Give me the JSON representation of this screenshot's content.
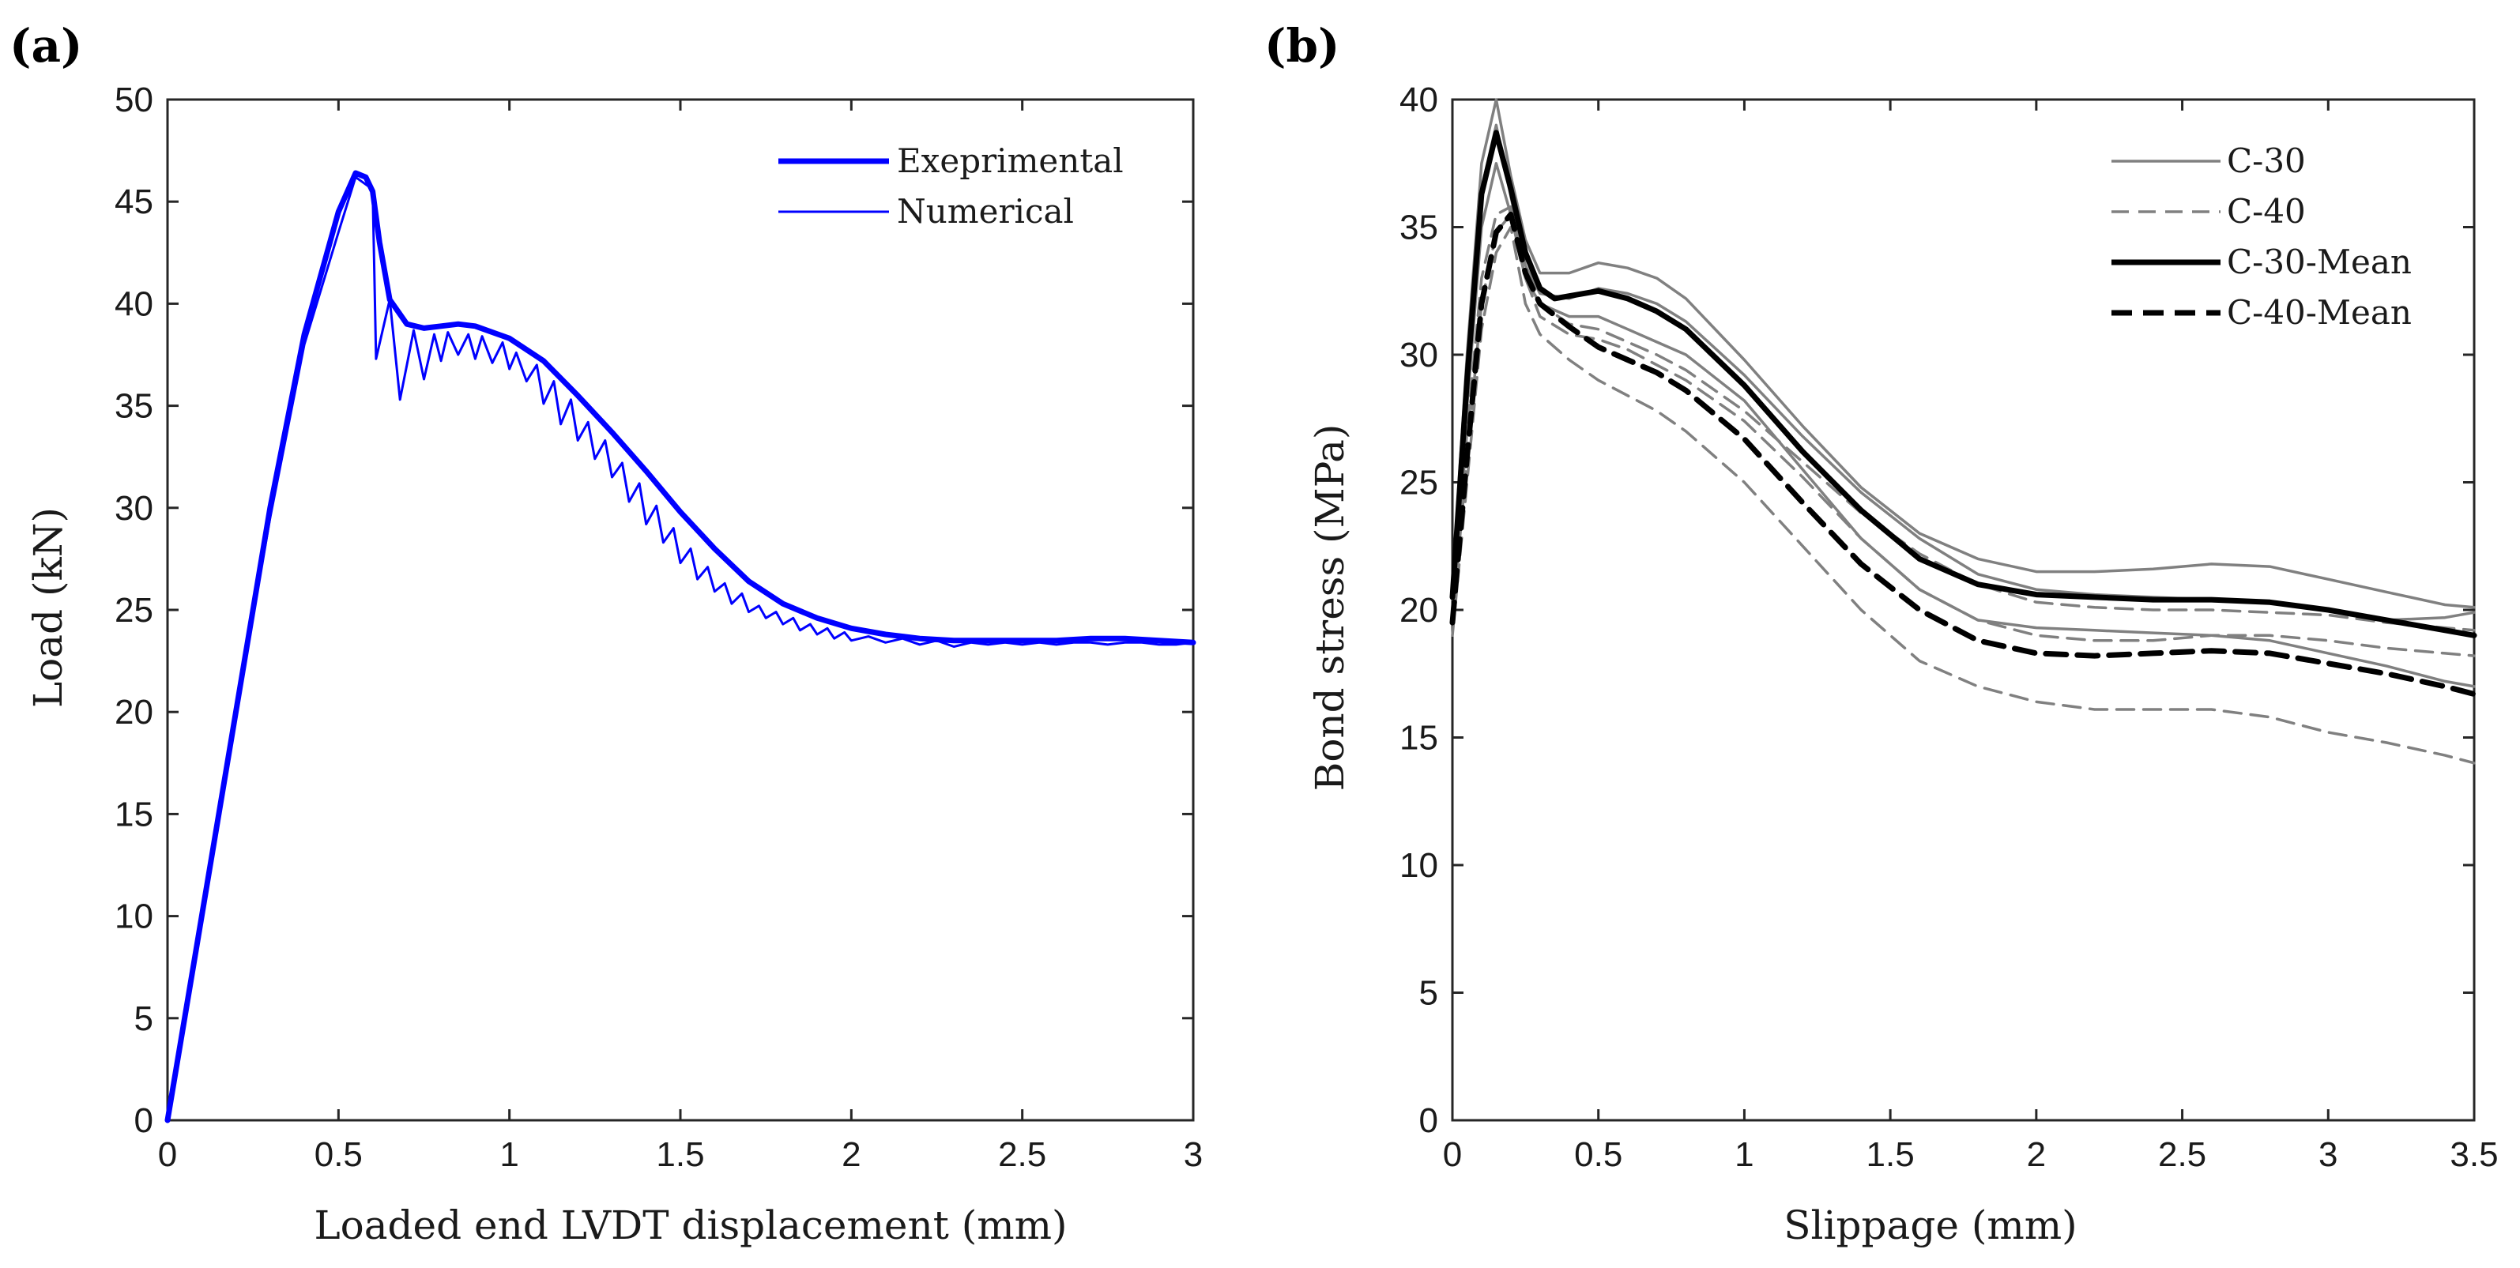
{
  "chart_data": [
    {
      "panel_label": "(a)",
      "type": "line",
      "xlabel": "Loaded end LVDT displacement (mm)",
      "ylabel": "Load (kN)",
      "xlim": [
        0,
        3
      ],
      "ylim": [
        0,
        50
      ],
      "xticks": [
        0,
        0.5,
        1,
        1.5,
        2,
        2.5,
        3
      ],
      "yticks": [
        0,
        5,
        10,
        15,
        20,
        25,
        30,
        35,
        40,
        45,
        50
      ],
      "xtick_labels": [
        "0",
        "0.5",
        "1",
        "1.5",
        "2",
        "2.5",
        "3"
      ],
      "ytick_labels": [
        "0",
        "5",
        "10",
        "15",
        "20",
        "25",
        "30",
        "35",
        "40",
        "45",
        "50"
      ],
      "legend_position": "top-right",
      "series": [
        {
          "name": "Exeprimental",
          "color": "#0000ff",
          "style": "thick",
          "x": [
            0,
            0.1,
            0.2,
            0.3,
            0.4,
            0.5,
            0.55,
            0.58,
            0.6,
            0.62,
            0.65,
            0.7,
            0.75,
            0.8,
            0.85,
            0.9,
            1.0,
            1.1,
            1.2,
            1.3,
            1.4,
            1.5,
            1.6,
            1.7,
            1.8,
            1.9,
            2.0,
            2.1,
            2.2,
            2.3,
            2.4,
            2.5,
            2.6,
            2.7,
            2.8,
            2.9,
            3.0
          ],
          "y": [
            0,
            10,
            20,
            30,
            38.5,
            44.5,
            46.4,
            46.2,
            45.5,
            43,
            40.2,
            39,
            38.8,
            38.9,
            39,
            38.9,
            38.3,
            37.2,
            35.5,
            33.7,
            31.8,
            29.8,
            28,
            26.4,
            25.3,
            24.6,
            24.1,
            23.8,
            23.6,
            23.5,
            23.5,
            23.5,
            23.5,
            23.6,
            23.6,
            23.5,
            23.4
          ]
        },
        {
          "name": "Numerical",
          "color": "#0000ff",
          "style": "thin",
          "x": [
            0,
            0.1,
            0.2,
            0.3,
            0.4,
            0.5,
            0.55,
            0.6,
            0.61,
            0.65,
            0.68,
            0.7,
            0.72,
            0.75,
            0.78,
            0.8,
            0.82,
            0.85,
            0.88,
            0.9,
            0.92,
            0.95,
            0.98,
            1.0,
            1.02,
            1.05,
            1.08,
            1.1,
            1.13,
            1.15,
            1.18,
            1.2,
            1.23,
            1.25,
            1.28,
            1.3,
            1.33,
            1.35,
            1.38,
            1.4,
            1.43,
            1.45,
            1.48,
            1.5,
            1.53,
            1.55,
            1.58,
            1.6,
            1.63,
            1.65,
            1.68,
            1.7,
            1.73,
            1.75,
            1.78,
            1.8,
            1.83,
            1.85,
            1.88,
            1.9,
            1.93,
            1.95,
            1.98,
            2.0,
            2.05,
            2.1,
            2.15,
            2.2,
            2.25,
            2.3,
            2.35,
            2.4,
            2.45,
            2.5,
            2.55,
            2.6,
            2.65,
            2.7,
            2.75,
            2.8,
            2.85,
            2.9,
            2.95,
            3.0
          ],
          "y": [
            0,
            10,
            20,
            29.5,
            38,
            43.5,
            46.2,
            45.6,
            37.3,
            40.2,
            35.3,
            37,
            38.7,
            36.3,
            38.5,
            37.2,
            38.6,
            37.5,
            38.5,
            37.3,
            38.4,
            37.1,
            38.1,
            36.8,
            37.6,
            36.2,
            37,
            35.1,
            36.2,
            34.1,
            35.3,
            33.3,
            34.2,
            32.4,
            33.3,
            31.5,
            32.2,
            30.3,
            31.2,
            29.2,
            30.1,
            28.3,
            29,
            27.3,
            28,
            26.5,
            27.1,
            25.9,
            26.3,
            25.3,
            25.8,
            24.9,
            25.2,
            24.6,
            24.9,
            24.3,
            24.6,
            24,
            24.3,
            23.8,
            24.1,
            23.6,
            23.9,
            23.5,
            23.7,
            23.4,
            23.6,
            23.3,
            23.5,
            23.2,
            23.4,
            23.3,
            23.4,
            23.3,
            23.4,
            23.3,
            23.4,
            23.4,
            23.3,
            23.4,
            23.4,
            23.3,
            23.3,
            23.4
          ]
        }
      ]
    },
    {
      "panel_label": "(b)",
      "type": "line",
      "xlabel": "Slippage (mm)",
      "ylabel": "Bond stress (MPa)",
      "xlim": [
        0,
        3.5
      ],
      "ylim": [
        0,
        40
      ],
      "xticks": [
        0,
        0.5,
        1,
        1.5,
        2,
        2.5,
        3,
        3.5
      ],
      "yticks": [
        0,
        5,
        10,
        15,
        20,
        25,
        30,
        35,
        40
      ],
      "xtick_labels": [
        "0",
        "0.5",
        "1",
        "1.5",
        "2",
        "2.5",
        "3",
        "3.5"
      ],
      "ytick_labels": [
        "0",
        "5",
        "10",
        "15",
        "20",
        "25",
        "30",
        "35",
        "40"
      ],
      "legend_position": "top-right",
      "series": [
        {
          "name": "C-30",
          "legend": true,
          "color": "#808080",
          "style": "solid-thin",
          "x": [
            0,
            0.05,
            0.1,
            0.15,
            0.2,
            0.25,
            0.3,
            0.4,
            0.5,
            0.6,
            0.7,
            0.8,
            1.0,
            1.2,
            1.4,
            1.6,
            1.8,
            2.0,
            2.2,
            2.4,
            2.6,
            2.8,
            3.0,
            3.2,
            3.4,
            3.5
          ],
          "y": [
            21,
            30,
            37.5,
            40,
            37,
            34.5,
            33.2,
            33.2,
            33.6,
            33.4,
            33,
            32.2,
            29.8,
            27.2,
            24.8,
            23,
            22,
            21.5,
            21.5,
            21.6,
            21.8,
            21.7,
            21.2,
            20.7,
            20.2,
            20.1
          ]
        },
        {
          "name": "C-30",
          "legend": false,
          "color": "#808080",
          "style": "solid-thin",
          "x": [
            0,
            0.05,
            0.1,
            0.15,
            0.2,
            0.25,
            0.3,
            0.4,
            0.5,
            0.6,
            0.7,
            0.8,
            1.0,
            1.2,
            1.4,
            1.6,
            1.8,
            2.0,
            2.2,
            2.4,
            2.6,
            2.8,
            3.0,
            3.2,
            3.4,
            3.5
          ],
          "y": [
            20.5,
            29,
            36.5,
            39,
            36.2,
            33.5,
            32.4,
            32.2,
            32.6,
            32.4,
            32,
            31.3,
            29.2,
            26.8,
            24.6,
            22.8,
            21.4,
            20.8,
            20.6,
            20.5,
            20.4,
            20.3,
            20,
            19.6,
            19.7,
            19.9
          ]
        },
        {
          "name": "C-30",
          "legend": false,
          "color": "#808080",
          "style": "solid-thin",
          "x": [
            0,
            0.05,
            0.1,
            0.15,
            0.2,
            0.25,
            0.3,
            0.4,
            0.5,
            0.6,
            0.7,
            0.8,
            1.0,
            1.2,
            1.4,
            1.6,
            1.8,
            2.0,
            2.2,
            2.4,
            2.6,
            2.8,
            3.0,
            3.2,
            3.4,
            3.5
          ],
          "y": [
            20,
            28,
            35,
            37.5,
            35.5,
            33,
            32,
            31.5,
            31.5,
            31,
            30.5,
            30,
            28.2,
            25.5,
            22.8,
            20.8,
            19.6,
            19.3,
            19.2,
            19.1,
            19,
            18.8,
            18.3,
            17.8,
            17.2,
            17
          ]
        },
        {
          "name": "C-40",
          "legend": true,
          "color": "#808080",
          "style": "dashed-thin",
          "x": [
            0,
            0.05,
            0.1,
            0.15,
            0.2,
            0.25,
            0.3,
            0.4,
            0.5,
            0.6,
            0.7,
            0.8,
            1.0,
            1.2,
            1.4,
            1.6,
            1.8,
            2.0,
            2.2,
            2.4,
            2.6,
            2.8,
            3.0,
            3.2,
            3.4,
            3.5
          ],
          "y": [
            20,
            27,
            33,
            35.5,
            35.8,
            33.5,
            32,
            31.2,
            31,
            30.5,
            30,
            29.4,
            27.8,
            25.8,
            23.8,
            22.2,
            21,
            20.3,
            20.1,
            20,
            20,
            19.9,
            19.8,
            19.5,
            19.3,
            19.2
          ]
        },
        {
          "name": "C-40",
          "legend": false,
          "color": "#808080",
          "style": "dashed-thin",
          "x": [
            0,
            0.05,
            0.1,
            0.15,
            0.2,
            0.25,
            0.3,
            0.4,
            0.5,
            0.6,
            0.7,
            0.8,
            1.0,
            1.2,
            1.4,
            1.6,
            1.8,
            2.0,
            2.2,
            2.4,
            2.6,
            2.8,
            3.0,
            3.2,
            3.4,
            3.5
          ],
          "y": [
            19.5,
            26,
            32,
            34.8,
            35.5,
            33,
            31.5,
            30.8,
            30.6,
            30.2,
            29.6,
            29,
            27.4,
            25.2,
            22.8,
            20.8,
            19.6,
            19,
            18.8,
            18.8,
            19,
            19,
            18.8,
            18.5,
            18.3,
            18.2
          ]
        },
        {
          "name": "C-40",
          "legend": false,
          "color": "#808080",
          "style": "dashed-thin",
          "x": [
            0,
            0.05,
            0.1,
            0.15,
            0.2,
            0.25,
            0.3,
            0.4,
            0.5,
            0.6,
            0.7,
            0.8,
            1.0,
            1.2,
            1.4,
            1.6,
            1.8,
            2.0,
            2.2,
            2.4,
            2.6,
            2.8,
            3.0,
            3.2,
            3.4,
            3.5
          ],
          "y": [
            19,
            25,
            31,
            34,
            35,
            32,
            30.8,
            29.8,
            29,
            28.4,
            27.8,
            27,
            25,
            22.5,
            20,
            18,
            17,
            16.4,
            16.1,
            16.1,
            16.1,
            15.8,
            15.2,
            14.8,
            14.3,
            14
          ]
        },
        {
          "name": "C-30-Mean",
          "legend": true,
          "color": "#000000",
          "style": "solid-thick",
          "x": [
            0,
            0.05,
            0.1,
            0.15,
            0.2,
            0.25,
            0.3,
            0.35,
            0.4,
            0.5,
            0.6,
            0.7,
            0.8,
            1.0,
            1.2,
            1.4,
            1.6,
            1.8,
            2.0,
            2.2,
            2.4,
            2.6,
            2.8,
            3.0,
            3.2,
            3.4,
            3.5
          ],
          "y": [
            20.5,
            29,
            36.3,
            38.7,
            36.5,
            34,
            32.6,
            32.2,
            32.3,
            32.5,
            32.2,
            31.7,
            31,
            28.8,
            26.2,
            23.9,
            22,
            21,
            20.6,
            20.5,
            20.4,
            20.4,
            20.3,
            20,
            19.6,
            19.2,
            19
          ]
        },
        {
          "name": "C-40-Mean",
          "legend": true,
          "color": "#000000",
          "style": "dashed-thick",
          "x": [
            0,
            0.05,
            0.1,
            0.15,
            0.2,
            0.25,
            0.3,
            0.4,
            0.5,
            0.6,
            0.7,
            0.8,
            1.0,
            1.2,
            1.4,
            1.6,
            1.8,
            2.0,
            2.2,
            2.4,
            2.6,
            2.8,
            3.0,
            3.2,
            3.4,
            3.5
          ],
          "y": [
            19.5,
            26,
            32,
            34.8,
            35.5,
            33.2,
            32,
            31.1,
            30.3,
            29.8,
            29.3,
            28.6,
            26.7,
            24.2,
            21.8,
            20,
            18.8,
            18.3,
            18.2,
            18.3,
            18.4,
            18.3,
            17.9,
            17.5,
            17,
            16.7
          ]
        }
      ]
    }
  ]
}
